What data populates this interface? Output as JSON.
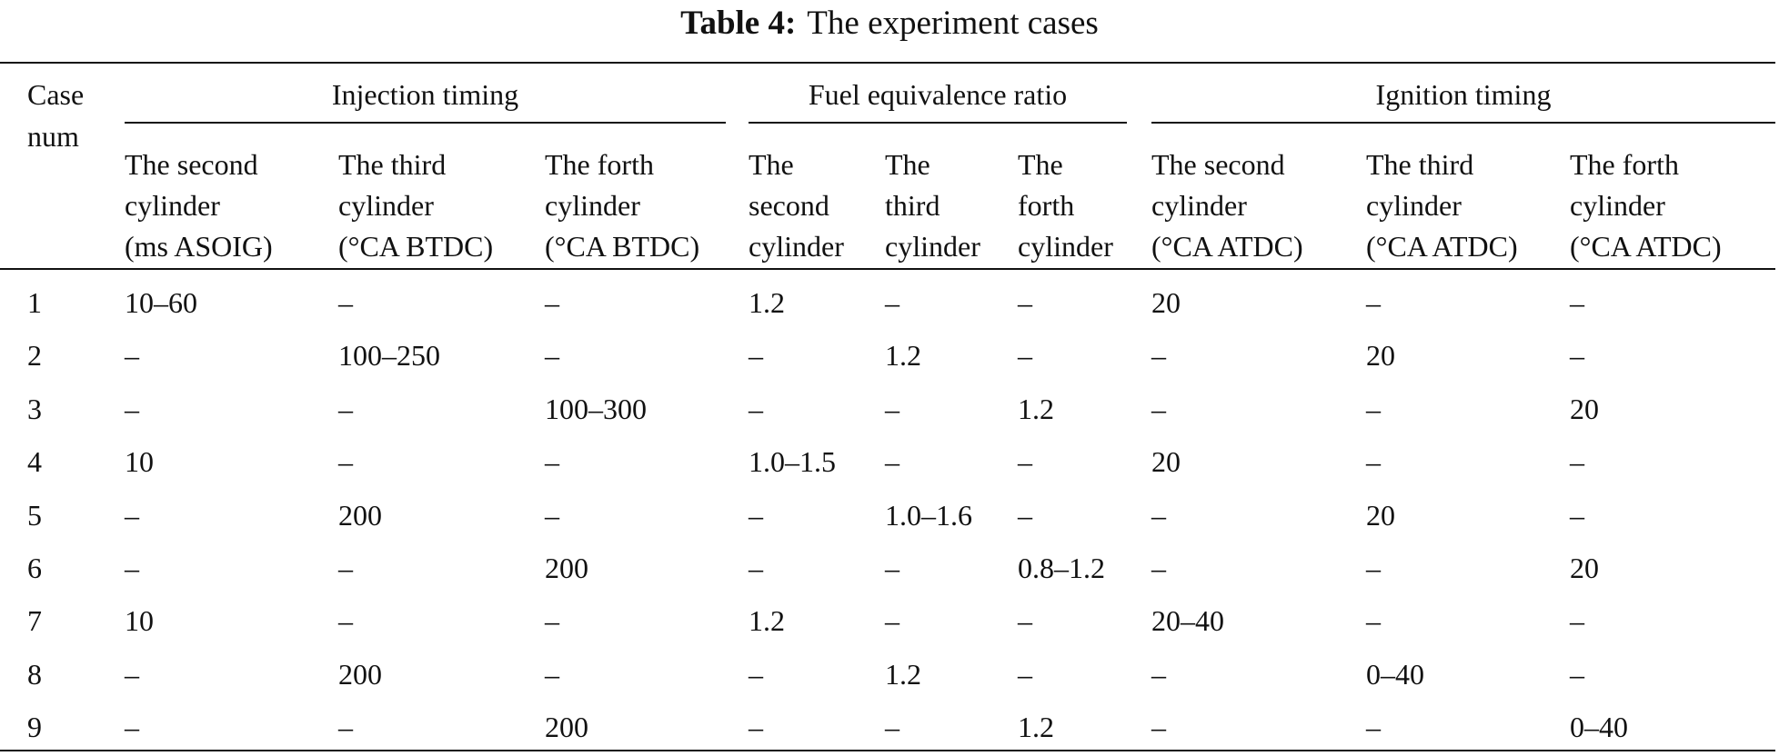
{
  "caption": {
    "label": "Table 4:",
    "text": "The experiment cases"
  },
  "table": {
    "corner": [
      "Case",
      "num"
    ],
    "groups": [
      {
        "label": "Injection timing",
        "from": 1,
        "to": 3
      },
      {
        "label": "Fuel equivalence ratio",
        "from": 4,
        "to": 6
      },
      {
        "label": "Ignition timing",
        "from": 7,
        "to": 9
      }
    ],
    "columns": [
      [
        "The second",
        "cylinder",
        "(ms ASOIG)"
      ],
      [
        "The third",
        "cylinder",
        "(°CA BTDC)"
      ],
      [
        "The forth",
        "cylinder",
        "(°CA BTDC)"
      ],
      [
        "The",
        "second",
        "cylinder"
      ],
      [
        "The",
        "third",
        "cylinder"
      ],
      [
        "The",
        "forth",
        "cylinder"
      ],
      [
        "The second",
        "cylinder",
        "(°CA ATDC)"
      ],
      [
        "The third",
        "cylinder",
        "(°CA ATDC)"
      ],
      [
        "The forth",
        "cylinder",
        "(°CA ATDC)"
      ]
    ],
    "rows": [
      [
        "1",
        "10–60",
        "–",
        "–",
        "1.2",
        "–",
        "–",
        "20",
        "–",
        "–"
      ],
      [
        "2",
        "–",
        "100–250",
        "–",
        "–",
        "1.2",
        "–",
        "–",
        "20",
        "–"
      ],
      [
        "3",
        "–",
        "–",
        "100–300",
        "–",
        "–",
        "1.2",
        "–",
        "–",
        "20"
      ],
      [
        "4",
        "10",
        "–",
        "–",
        "1.0–1.5",
        "–",
        "–",
        "20",
        "–",
        "–"
      ],
      [
        "5",
        "–",
        "200",
        "–",
        "–",
        "1.0–1.6",
        "–",
        "–",
        "20",
        "–"
      ],
      [
        "6",
        "–",
        "–",
        "200",
        "–",
        "–",
        "0.8–1.2",
        "–",
        "–",
        "20"
      ],
      [
        "7",
        "10",
        "–",
        "–",
        "1.2",
        "–",
        "–",
        "20–40",
        "–",
        "–"
      ],
      [
        "8",
        "–",
        "200",
        "–",
        "–",
        "1.2",
        "–",
        "–",
        "0–40",
        "–"
      ],
      [
        "9",
        "–",
        "–",
        "200",
        "–",
        "–",
        "1.2",
        "–",
        "–",
        "0–40"
      ]
    ]
  }
}
